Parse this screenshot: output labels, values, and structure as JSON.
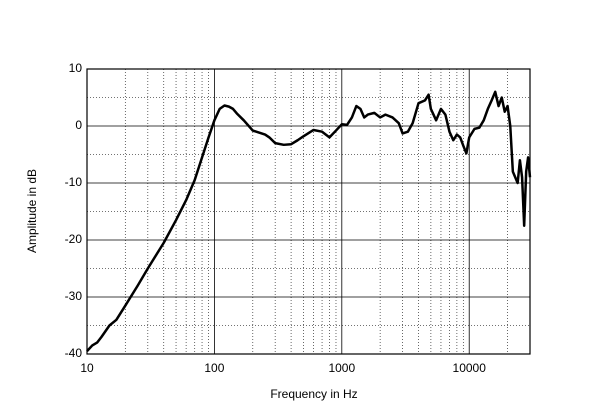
{
  "chart_data": {
    "type": "line",
    "xlabel": "Frequency in Hz",
    "ylabel": "Amplitude in dB",
    "xscale": "log",
    "grid": true,
    "xlim": [
      10,
      30000
    ],
    "ylim": [
      -40,
      10
    ],
    "xticks": [
      10,
      100,
      1000,
      10000
    ],
    "yticks": [
      -40,
      -30,
      -20,
      -10,
      0,
      10
    ],
    "xminor": [
      20,
      30,
      40,
      50,
      60,
      70,
      80,
      90,
      200,
      300,
      400,
      500,
      600,
      700,
      800,
      900,
      2000,
      3000,
      4000,
      5000,
      6000,
      7000,
      8000,
      9000,
      20000
    ],
    "yminor": [
      -35,
      -25,
      -15,
      -5,
      5
    ],
    "series": [
      {
        "color": "#000000",
        "x": [
          10,
          11,
          12,
          13,
          15,
          17,
          20,
          25,
          30,
          40,
          50,
          60,
          70,
          80,
          90,
          100,
          110,
          120,
          130,
          140,
          150,
          170,
          200,
          250,
          270,
          300,
          350,
          400,
          450,
          500,
          600,
          700,
          800,
          900,
          1000,
          1100,
          1200,
          1300,
          1400,
          1500,
          1600,
          1800,
          2000,
          2200,
          2500,
          2800,
          3000,
          3300,
          3600,
          4000,
          4500,
          4800,
          5000,
          5500,
          6000,
          6500,
          7000,
          7500,
          8000,
          8500,
          9000,
          9500,
          10000,
          11000,
          12000,
          13000,
          14000,
          15000,
          16000,
          17000,
          18000,
          19000,
          20000,
          21000,
          22000,
          24000,
          25000,
          26000,
          27000,
          28000,
          29000,
          30000
        ],
        "values": [
          -39.5,
          -38.5,
          -38,
          -37,
          -35,
          -34,
          -31.5,
          -28,
          -25,
          -20.5,
          -16.5,
          -13,
          -9.5,
          -5.5,
          -2,
          1,
          3,
          3.6,
          3.4,
          3,
          2.2,
          1,
          -0.8,
          -1.5,
          -2,
          -3,
          -3.3,
          -3.2,
          -2.5,
          -1.8,
          -0.7,
          -1,
          -2,
          -0.8,
          0.3,
          0.2,
          1.5,
          3.5,
          3,
          1.5,
          2,
          2.3,
          1.5,
          2,
          1.5,
          0.5,
          -1.3,
          -1,
          0.5,
          4,
          4.5,
          5.5,
          3,
          1,
          3,
          2,
          -1,
          -2.5,
          -1.5,
          -2,
          -3.5,
          -4.8,
          -2,
          -0.5,
          -0.3,
          1,
          3,
          4.5,
          6,
          3.5,
          5,
          2.5,
          3.5,
          0,
          -8,
          -10,
          -6,
          -9,
          -17.5,
          -8,
          -5.5,
          -9
        ]
      }
    ]
  }
}
